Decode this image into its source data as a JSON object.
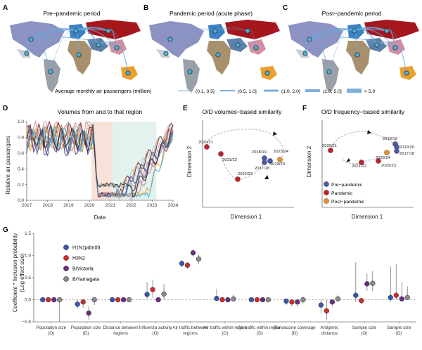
{
  "colors": {
    "route": "#5b9bd5",
    "pre": "#4a5aa8",
    "pandemic": "#c0202a",
    "post": "#e8902c",
    "h1n1": "#3b55b0",
    "h3n2": "#d42a2a",
    "bvic": "#6a2d82",
    "byam": "#8a8a8a",
    "shade_red": "#f8e1d8",
    "shade_green": "#e3f2ee"
  },
  "maps": {
    "A": {
      "letter": "A",
      "title": "Pre−pandemic period"
    },
    "B": {
      "letter": "B",
      "title": "Pandemic period (acute phase)"
    },
    "C": {
      "letter": "C",
      "title": "Post−pandemic period"
    }
  },
  "legend": {
    "title": "Average monthly air passengers (million)",
    "items": [
      "(0.1, 0.5]",
      "(0.5, 1.0]",
      "(1.0, 2.0]",
      "(2.0, 5.0]",
      "> 5.0"
    ]
  },
  "panel_d": {
    "letter": "D",
    "title": "Volumes from and to that region",
    "xlabel": "Date",
    "ylabel": "Relative air passengers",
    "xticks": [
      "2017",
      "2018",
      "2019",
      "2020",
      "2021",
      "2022",
      "2023",
      "2024"
    ],
    "yticks": [
      "0.0",
      "0.2",
      "0.4",
      "0.6",
      "0.8",
      "1.0"
    ]
  },
  "panel_e": {
    "letter": "E",
    "title": "O/D volumes−based similarity",
    "xlabel": "Dimension 1",
    "ylabel": "Dimension 2",
    "points": [
      {
        "label": "2020/21",
        "period": "pandemic"
      },
      {
        "label": "2021/22",
        "period": "pandemic"
      },
      {
        "label": "2022/23",
        "period": "pandemic"
      },
      {
        "label": "2018/19",
        "period": "pre"
      },
      {
        "label": "2017/18",
        "period": "pre"
      },
      {
        "label": "2019/20",
        "period": "pre"
      },
      {
        "label": "2023/24",
        "period": "post"
      }
    ]
  },
  "panel_f": {
    "letter": "F",
    "title": "O/D frequency−based similarity",
    "xlabel": "Dimension 1",
    "ylabel": "Dimension 2",
    "points": [
      {
        "label": "2020/21",
        "period": "pandemic"
      },
      {
        "label": "2021/22",
        "period": "pandemic"
      },
      {
        "label": "2022/23",
        "period": "pandemic"
      },
      {
        "label": "2018/19",
        "period": "pre"
      },
      {
        "label": "2019/20",
        "period": "pre"
      },
      {
        "label": "2017/18",
        "period": "pre"
      },
      {
        "label": "2023/24",
        "period": "post"
      }
    ],
    "legend": [
      "Pre−pandemic",
      "Pandemic",
      "Post−pandemic"
    ]
  },
  "chart_data": {
    "type": "scatter",
    "panel": "G",
    "ylabel": "Coefficient * Inclusion probability (Log effect size)",
    "ylim": [
      -0.5,
      1.5
    ],
    "yticks": [
      "−0.5",
      "0.0",
      "0.5",
      "1.0",
      "1.5"
    ],
    "categories": [
      "Population size (O)",
      "Population size (D)",
      "Distance between regions",
      "Influenza activity (O)",
      "Air traffic between regions",
      "Air traffic within region (O)",
      "Air traffic within region (D)",
      "Flu vaccine coverage (D)",
      "Antigenic distance",
      "Sample size (O)",
      "Sample size (D)"
    ],
    "series": [
      {
        "name": "H1N1pdm09",
        "values": [
          0,
          -0.1,
          0,
          0.12,
          0.82,
          0.03,
          0,
          -0.03,
          -0.12,
          0.1,
          0.05
        ],
        "lo": [
          0,
          -0.2,
          0,
          0.02,
          0.74,
          0,
          0,
          -0.12,
          -0.3,
          -0.05,
          -0.05
        ],
        "hi": [
          0,
          0,
          0,
          0.4,
          0.9,
          0.25,
          0,
          0,
          0,
          0.85,
          0.75
        ]
      },
      {
        "name": "H3N2",
        "values": [
          0,
          -0.05,
          0,
          0.23,
          0.78,
          0,
          0,
          -0.05,
          -0.25,
          -0.02,
          0.1
        ],
        "lo": [
          0,
          -0.18,
          0,
          0.05,
          0.7,
          0,
          0,
          -0.15,
          -0.45,
          -0.1,
          0
        ],
        "hi": [
          0,
          0.02,
          0,
          0.45,
          0.85,
          0,
          0,
          0,
          0,
          0,
          0.8
        ]
      },
      {
        "name": "B/Victoria",
        "values": [
          0,
          -0.3,
          0,
          0,
          1.06,
          0,
          0,
          -0.05,
          -0.05,
          0.36,
          0.02
        ],
        "lo": [
          0,
          -0.45,
          0,
          0,
          0.97,
          0,
          0,
          -0.15,
          -0.15,
          0.2,
          0
        ],
        "hi": [
          0,
          -0.15,
          0,
          0,
          1.13,
          0,
          0,
          0,
          0,
          0.6,
          0.4
        ]
      },
      {
        "name": "B/Yamagata",
        "values": [
          0,
          0,
          0,
          0.13,
          0.92,
          0.02,
          0,
          0,
          0.02,
          0.37,
          0.05
        ],
        "lo": [
          -0.5,
          -0.12,
          0,
          0,
          0.8,
          0,
          0,
          -0.08,
          0,
          0.2,
          0
        ],
        "hi": [
          0,
          0,
          0,
          0.35,
          1.02,
          0.12,
          0,
          0,
          0.1,
          0.65,
          0.3
        ]
      }
    ]
  }
}
